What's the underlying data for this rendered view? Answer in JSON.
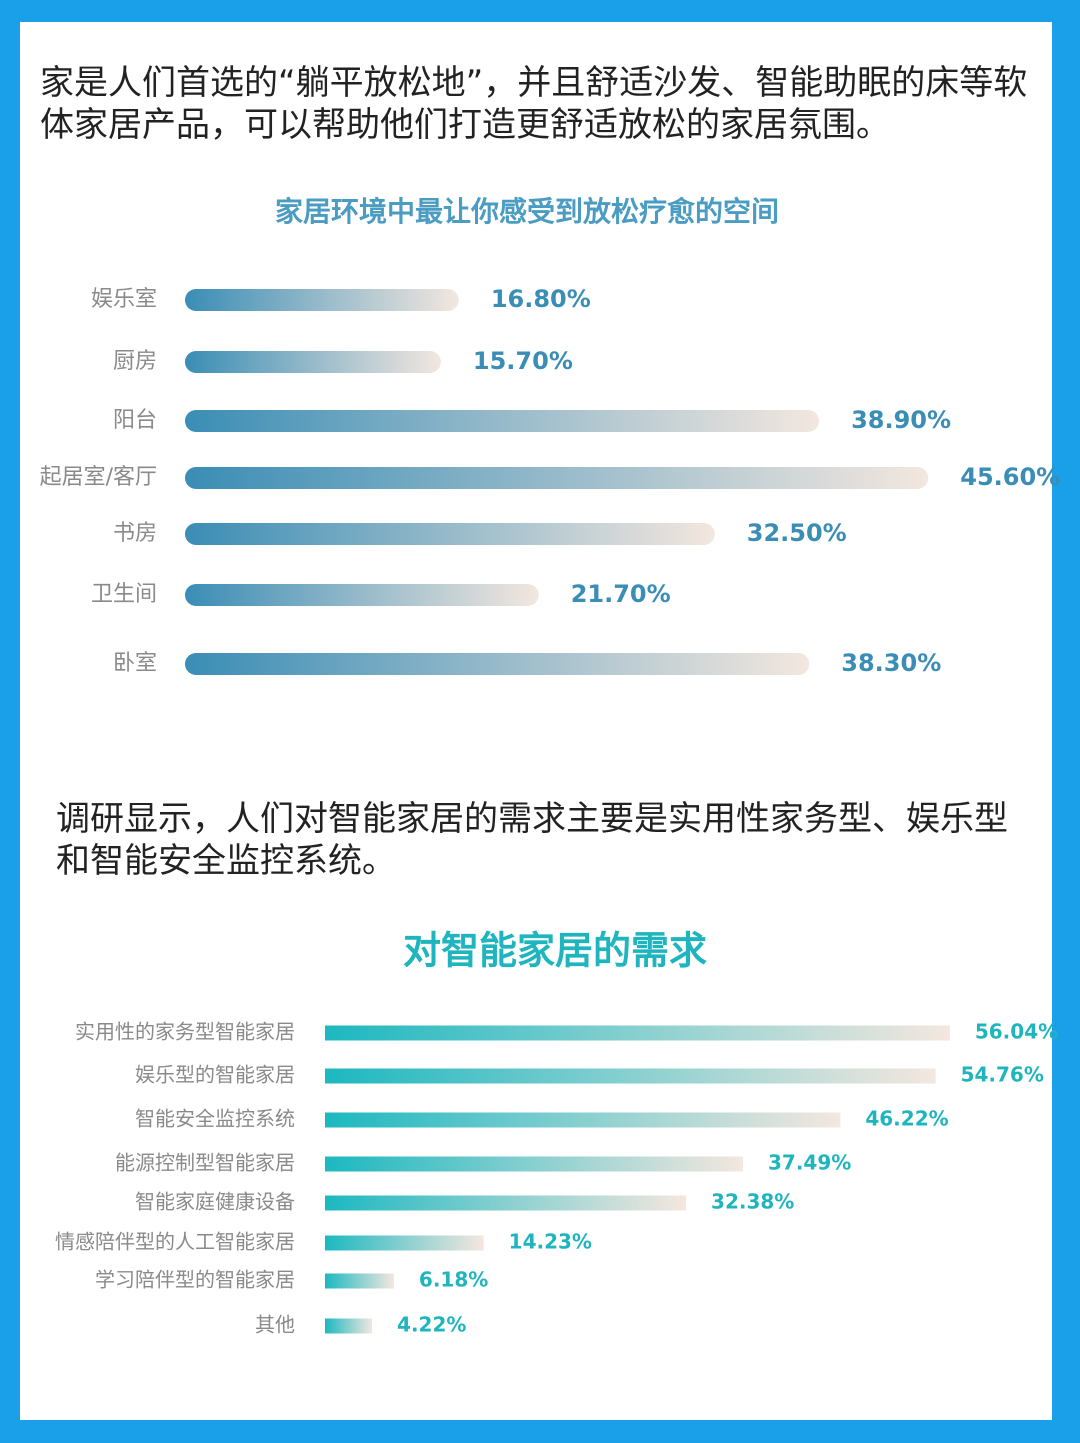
{
  "paragraphs": [
    "家是人们首选的“躺平放松地”，并且舒适沙发、智能助眠的床等软体家居产品，可以帮助他们打造更舒适放松的家居氛围。",
    "调研显示，人们对智能家居的需求主要是实用性家务型、娱乐型和智能安全监控系统。"
  ],
  "chart_data": [
    {
      "type": "bar",
      "orientation": "horizontal",
      "title": "家居环境中最让你感受到放松疗愈的空间",
      "categories": [
        "娱乐室",
        "厨房",
        "阳台",
        "起居室/客厅",
        "书房",
        "卫生间",
        "卧室"
      ],
      "values": [
        16.8,
        15.7,
        38.9,
        45.6,
        32.5,
        21.7,
        38.3
      ],
      "value_labels": [
        "16.80%",
        "15.70%",
        "38.90%",
        "45.60%",
        "32.50%",
        "21.70%",
        "38.30%"
      ],
      "colors": [
        "#3a8db5",
        "#f3e7df"
      ]
    },
    {
      "type": "bar",
      "orientation": "horizontal",
      "title": "对智能家居的需求",
      "categories": [
        "实用性的家务型智能家居",
        "娱乐型的智能家居",
        "智能安全监控系统",
        "能源控制型智能家居",
        "智能家庭健康设备",
        "情感陪伴型的人工智能家居",
        "学习陪伴型的智能家居",
        "其他"
      ],
      "values": [
        56.04,
        54.76,
        46.22,
        37.49,
        32.38,
        14.23,
        6.18,
        4.22
      ],
      "value_labels": [
        "56.04%",
        "54.76%",
        "46.22%",
        "37.49%",
        "32.38%",
        "14.23%",
        "6.18%",
        "4.22%"
      ],
      "colors": [
        "#1cb8c0",
        "#f4e7df"
      ]
    }
  ]
}
